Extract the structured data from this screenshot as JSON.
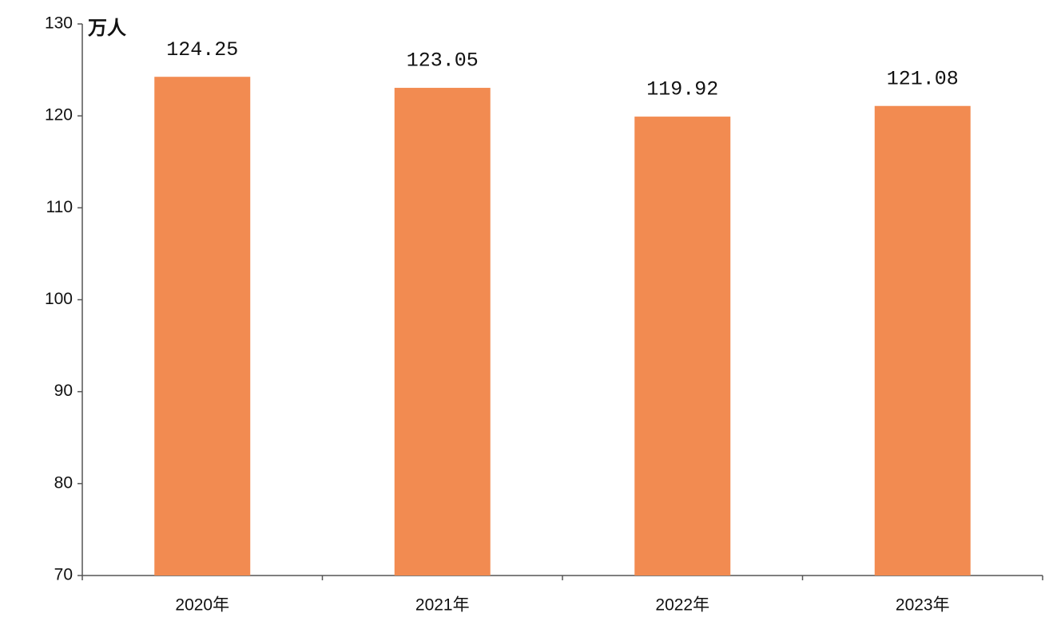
{
  "chart_data": {
    "type": "bar",
    "y_label": "万人",
    "categories": [
      "2020年",
      "2021年",
      "2022年",
      "2023年"
    ],
    "values": [
      124.25,
      123.05,
      119.92,
      121.08
    ],
    "color": "#f28b51",
    "ylim": [
      70,
      130
    ],
    "yticks": [
      70,
      80,
      90,
      100,
      110,
      120,
      130
    ],
    "grid": false
  }
}
